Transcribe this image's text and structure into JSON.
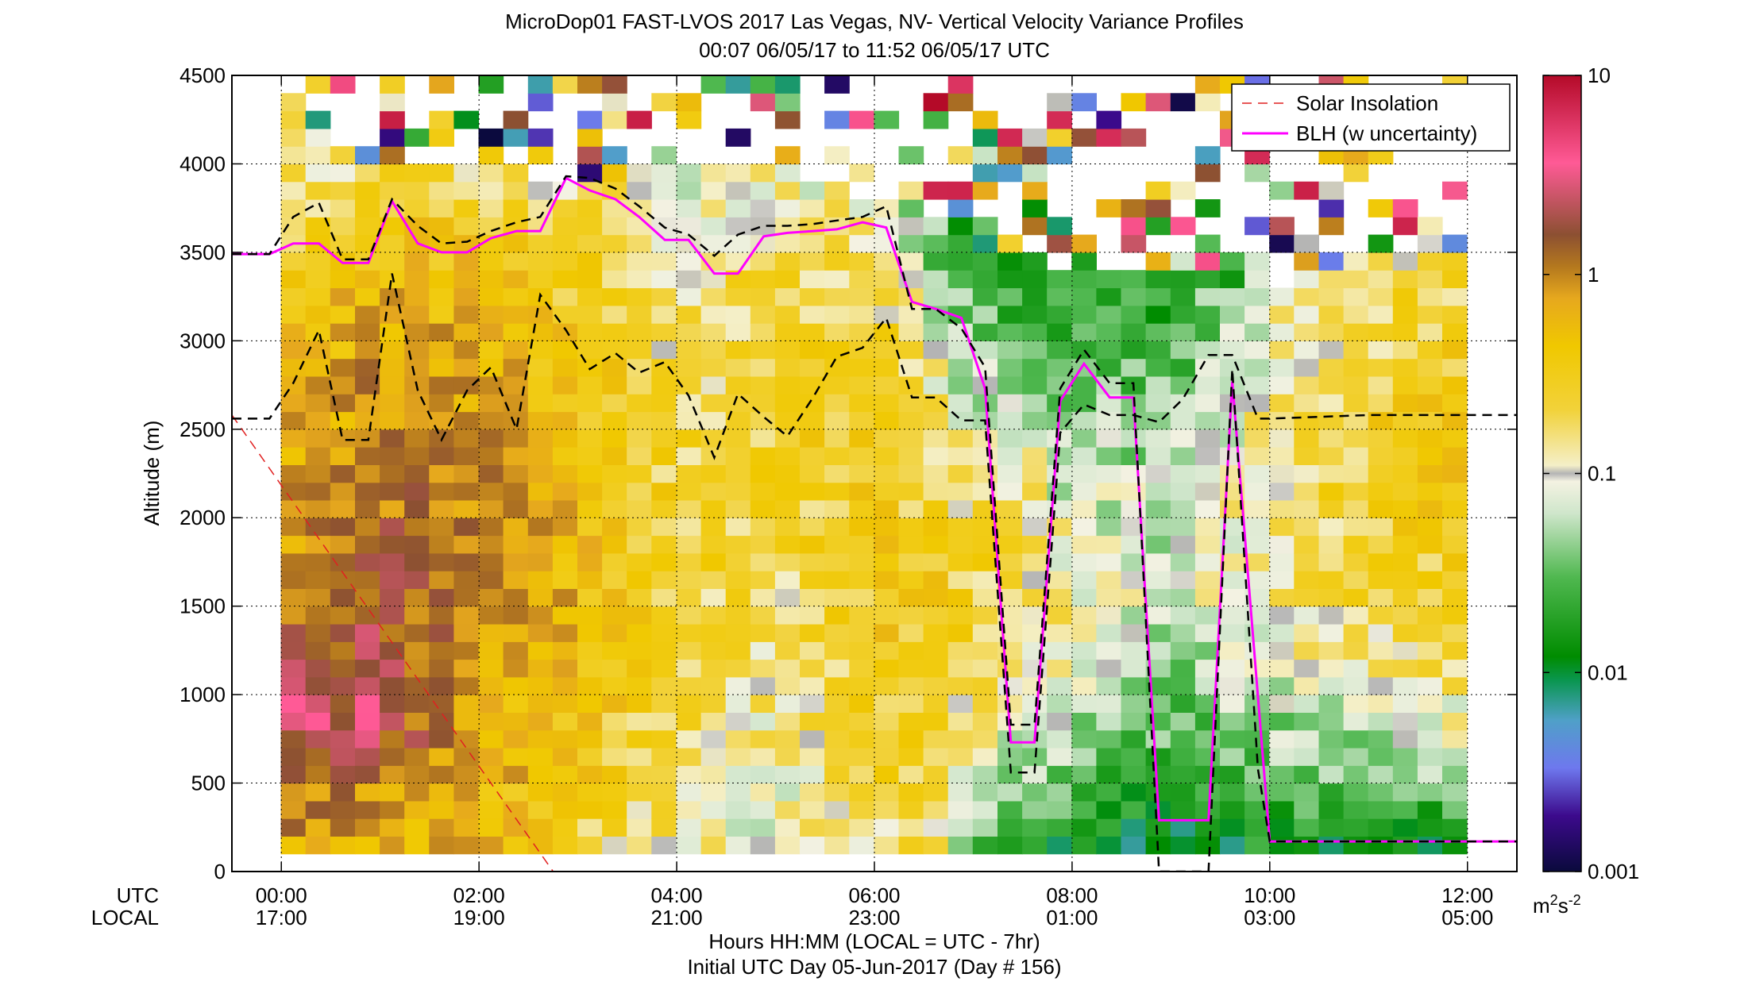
{
  "chart_data": {
    "type": "heatmap",
    "title": "MicroDop01 FAST-LVOS 2017 Las Vegas, NV- Vertical Velocity Variance Profiles",
    "subtitle": "00:07 06/05/17 to 11:52 06/05/17  UTC",
    "ylabel": "Altitude (m)",
    "xlabel": "Hours HH:MM  (LOCAL = UTC - 7hr)",
    "xlabel2": "Initial UTC Day 05-Jun-2017 (Day # 156)",
    "xlim": [
      -0.5,
      12.5
    ],
    "ylim": [
      0,
      4500
    ],
    "yticks": [
      0,
      500,
      1000,
      1500,
      2000,
      2500,
      3000,
      3500,
      4000,
      4500
    ],
    "xticks": [
      0,
      2,
      4,
      6,
      8,
      10,
      12
    ],
    "xtick_labels_utc": [
      "00:00",
      "02:00",
      "04:00",
      "06:00",
      "08:00",
      "10:00",
      "12:00"
    ],
    "xtick_labels_local": [
      "17:00",
      "19:00",
      "21:00",
      "23:00",
      "01:00",
      "03:00",
      "05:00"
    ],
    "row_label_utc": "UTC",
    "row_label_local": "LOCAL",
    "grid": true,
    "legend_position": "top-right",
    "colorbar": {
      "scale": "log",
      "range": [
        0.001,
        10
      ],
      "tick_labels": [
        "10",
        "1",
        "0.1",
        "0.01",
        "0.001"
      ],
      "unit_base": "m",
      "unit_sup1": "2",
      "unit_mid": "s",
      "unit_sup2": "-2"
    },
    "heatmap": {
      "time_step_hours": 0.25,
      "first_time_hours": 0.12,
      "first_height_m": 150,
      "height_step_m": 100,
      "profile_grid": {
        "time_hours": [
          0.12,
          1.0,
          2.0,
          3.0,
          4.0,
          5.0,
          6.0,
          6.5,
          7.0,
          7.5,
          8.0,
          9.0,
          10.0,
          11.0,
          11.87
        ],
        "height_m": [
          150,
          500,
          1000,
          1500,
          2000,
          2500,
          3000,
          3500,
          4000
        ],
        "log10_variance": [
          [
            -0.1,
            0.1,
            0.5,
            0.0,
            -0.1,
            -0.2,
            -0.4,
            -0.6,
            -0.9
          ],
          [
            -0.2,
            0.0,
            0.5,
            0.2,
            0.1,
            0.0,
            -0.1,
            -0.4,
            -0.8
          ],
          [
            -0.3,
            -0.2,
            -0.1,
            0.0,
            0.0,
            -0.1,
            -0.2,
            -0.4,
            -0.8
          ],
          [
            -0.6,
            -0.5,
            -0.4,
            -0.3,
            -0.3,
            -0.4,
            -0.5,
            -0.6,
            -0.9
          ],
          [
            -0.9,
            -0.8,
            -0.7,
            -0.6,
            -0.6,
            -0.7,
            -0.8,
            -0.9,
            -1.1
          ],
          [
            -1.1,
            -1.0,
            -0.9,
            -0.8,
            -0.7,
            -0.6,
            -0.6,
            -0.7,
            -1.0
          ],
          [
            -0.9,
            -0.7,
            -0.6,
            -0.5,
            -0.5,
            -0.5,
            -0.6,
            -0.8,
            -1.2
          ],
          [
            -0.7,
            -0.6,
            -0.5,
            -0.5,
            -0.6,
            -0.7,
            -0.9,
            -1.3,
            -1.5
          ],
          [
            -1.4,
            -1.2,
            -0.8,
            -0.6,
            -0.7,
            -1.1,
            -1.4,
            -1.7,
            -1.9
          ],
          [
            -1.7,
            -1.3,
            -0.9,
            -0.7,
            -0.8,
            -1.1,
            -1.5,
            -1.8,
            -2.0
          ],
          [
            -1.9,
            -1.5,
            -1.2,
            -1.0,
            -1.1,
            -1.3,
            -1.5,
            -1.8,
            -2.0
          ],
          [
            -2.0,
            -1.7,
            -1.4,
            -1.2,
            -1.2,
            -1.3,
            -1.6,
            -1.9,
            -2.1
          ],
          [
            -1.8,
            -1.5,
            -1.2,
            -0.9,
            -0.8,
            -0.9,
            -1.0,
            -0.9,
            -1.0
          ],
          [
            -1.9,
            -1.4,
            -1.0,
            -0.7,
            -0.6,
            -0.6,
            -0.7,
            -0.8,
            -1.0
          ],
          [
            -2.0,
            -1.3,
            -0.9,
            -0.6,
            -0.5,
            -0.5,
            -0.6,
            -0.7,
            -0.9
          ]
        ]
      },
      "top_height_m": [
        [
          0.12,
          4300
        ],
        [
          1.0,
          4000
        ],
        [
          2.0,
          4000
        ],
        [
          2.75,
          3900
        ],
        [
          4.0,
          4000
        ],
        [
          5.0,
          4000
        ],
        [
          6.0,
          3800
        ],
        [
          6.75,
          3600
        ],
        [
          7.25,
          3500
        ],
        [
          8.0,
          3400
        ],
        [
          9.0,
          3400
        ],
        [
          9.75,
          3300
        ],
        [
          10.5,
          3400
        ],
        [
          11.0,
          3500
        ],
        [
          11.87,
          3500
        ]
      ],
      "sparse_top_height_m": 4500
    },
    "series": [
      {
        "name": "Solar Insolation",
        "color": "#e02020",
        "style": "dashed",
        "x": [
          -0.5,
          2.75
        ],
        "y": [
          2580,
          0
        ]
      },
      {
        "name": "BLH (w uncertainty)",
        "color": "#ff00ff",
        "style": "solid",
        "x": [
          -0.5,
          -0.12,
          0.12,
          0.38,
          0.62,
          0.88,
          1.12,
          1.38,
          1.62,
          1.88,
          2.12,
          2.38,
          2.62,
          2.88,
          3.12,
          3.38,
          3.62,
          3.88,
          4.12,
          4.38,
          4.62,
          4.88,
          5.12,
          5.38,
          5.62,
          5.88,
          6.12,
          6.38,
          6.62,
          6.88,
          7.12,
          7.38,
          7.62,
          7.88,
          8.12,
          8.38,
          8.62,
          8.88,
          9.12,
          9.38,
          9.62,
          10.0,
          11.0,
          12.0,
          12.5
        ],
        "y": [
          3490,
          3490,
          3550,
          3550,
          3440,
          3440,
          3790,
          3550,
          3500,
          3500,
          3580,
          3620,
          3620,
          3920,
          3850,
          3800,
          3700,
          3570,
          3570,
          3380,
          3380,
          3590,
          3610,
          3620,
          3630,
          3670,
          3640,
          3220,
          3180,
          3130,
          2730,
          730,
          730,
          2660,
          2870,
          2680,
          2680,
          290,
          290,
          290,
          2770,
          170,
          170,
          170,
          170
        ]
      },
      {
        "name": "BLH upper",
        "color": "#000000",
        "style": "dashed",
        "x": [
          -0.5,
          -0.12,
          0.12,
          0.38,
          0.62,
          0.88,
          1.12,
          1.38,
          1.62,
          1.88,
          2.12,
          2.38,
          2.62,
          2.88,
          3.12,
          3.38,
          3.62,
          3.88,
          4.12,
          4.38,
          4.62,
          4.88,
          5.12,
          5.38,
          5.62,
          5.88,
          6.12,
          6.38,
          6.62,
          6.88,
          7.12,
          7.38,
          7.62,
          7.88,
          8.12,
          8.38,
          8.62,
          8.88,
          9.12,
          9.38,
          9.62,
          9.88,
          10.0,
          11.0,
          12.0,
          12.5
        ],
        "y": [
          3490,
          3490,
          3700,
          3780,
          3460,
          3460,
          3800,
          3650,
          3550,
          3560,
          3620,
          3670,
          3700,
          3930,
          3920,
          3860,
          3760,
          3640,
          3600,
          3480,
          3600,
          3650,
          3650,
          3660,
          3680,
          3700,
          3760,
          3180,
          3180,
          3070,
          2850,
          830,
          830,
          2730,
          2950,
          2760,
          2760,
          0,
          0,
          0,
          2840,
          580,
          170,
          170,
          170,
          170
        ]
      },
      {
        "name": "BLH lower",
        "color": "#000000",
        "style": "dashed",
        "x": [
          -0.5,
          -0.12,
          0.12,
          0.38,
          0.62,
          0.88,
          1.12,
          1.38,
          1.62,
          1.88,
          2.12,
          2.38,
          2.62,
          2.88,
          3.12,
          3.38,
          3.62,
          3.88,
          4.12,
          4.38,
          4.62,
          4.88,
          5.12,
          5.38,
          5.62,
          5.88,
          6.12,
          6.38,
          6.62,
          6.88,
          7.12,
          7.38,
          7.62,
          7.88,
          8.12,
          8.38,
          8.62,
          8.88,
          9.12,
          9.38,
          9.62,
          9.88,
          10.0,
          11.0,
          12.0,
          12.5
        ],
        "y": [
          2560,
          2560,
          2760,
          3060,
          2440,
          2440,
          3380,
          2720,
          2440,
          2720,
          2850,
          2500,
          3260,
          3060,
          2840,
          2930,
          2820,
          2880,
          2690,
          2340,
          2700,
          2570,
          2460,
          2680,
          2910,
          2960,
          3130,
          2680,
          2680,
          2550,
          2550,
          560,
          560,
          2480,
          2640,
          2580,
          2580,
          2540,
          2670,
          2920,
          2920,
          2560,
          2560,
          2580,
          2580,
          2580
        ]
      }
    ]
  }
}
